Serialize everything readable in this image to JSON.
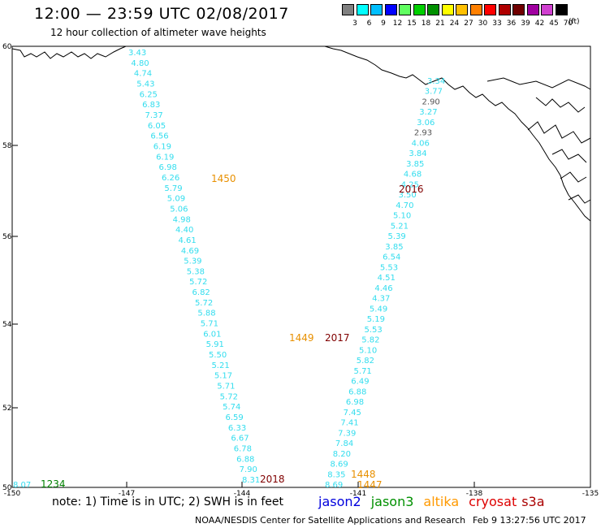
{
  "header": {
    "title": "12:00 — 23:59 UTC 02/08/2017",
    "subtitle": "12 hour collection of altimeter wave heights"
  },
  "legend": {
    "bins": [
      {
        "label": "3",
        "color": "#808080"
      },
      {
        "label": "6",
        "color": "#00ffff"
      },
      {
        "label": "9",
        "color": "#00bfff"
      },
      {
        "label": "12",
        "color": "#0000ff"
      },
      {
        "label": "15",
        "color": "#60ff60"
      },
      {
        "label": "18",
        "color": "#00d000"
      },
      {
        "label": "21",
        "color": "#009000"
      },
      {
        "label": "24",
        "color": "#ffff00"
      },
      {
        "label": "27",
        "color": "#ffc000"
      },
      {
        "label": "30",
        "color": "#ff8000"
      },
      {
        "label": "33",
        "color": "#ff0000"
      },
      {
        "label": "36",
        "color": "#b00000"
      },
      {
        "label": "39",
        "color": "#700000"
      },
      {
        "label": "42",
        "color": "#a000a0"
      },
      {
        "label": "45",
        "color": "#d040d0"
      },
      {
        "label": "70",
        "color": "#000000"
      }
    ],
    "unit": "(ft)"
  },
  "map": {
    "lat_labels": [
      "60",
      "58",
      "56",
      "54",
      "52",
      "50"
    ],
    "lon_labels": [
      "-150",
      "-147",
      "-144",
      "-141",
      "-138",
      "-135"
    ],
    "swh_color": "#33ddee",
    "swh_gray": "#555555",
    "track_a_values": [
      "3.43",
      "4.80",
      "4.74",
      "5.43",
      "6.25",
      "6.83",
      "7.37",
      "6.05",
      "6.56",
      "6.19",
      "6.19",
      "6.98",
      "6.26",
      "5.79",
      "5.09",
      "5.06",
      "4.98",
      "4.40",
      "4.61",
      "4.69",
      "5.39",
      "5.38",
      "5.72",
      "6.82",
      "5.72",
      "5.88",
      "5.71",
      "6.01",
      "5.91",
      "5.50",
      "5.21",
      "5.17",
      "5.71",
      "5.72",
      "5.74",
      "6.59",
      "6.33",
      "6.67",
      "6.78",
      "6.88",
      "7.90",
      "8.31"
    ],
    "track_b_values": [
      "3.34",
      "3.77",
      "2.90",
      "3.27",
      "3.06",
      "2.93",
      "4.06",
      "3.84",
      "3.85",
      "4.68",
      "4.25",
      "3.50",
      "4.70",
      "5.10",
      "5.21",
      "5.39",
      "3.85",
      "6.54",
      "5.53",
      "4.51",
      "4.46",
      "4.37",
      "5.49",
      "5.19",
      "5.53",
      "5.82",
      "5.10",
      "5.82",
      "5.71",
      "6.49",
      "6.88",
      "6.98",
      "7.45",
      "7.41",
      "7.39",
      "7.84",
      "8.20",
      "8.69",
      "8.35",
      "8.69"
    ],
    "time_labels": [
      {
        "text": "1450",
        "color": "#e89000"
      },
      {
        "text": "2016",
        "color": "#800000"
      },
      {
        "text": "1449",
        "color": "#e89000"
      },
      {
        "text": "2017",
        "color": "#800000"
      },
      {
        "text": "2018",
        "color": "#800000"
      },
      {
        "text": "1448",
        "color": "#e89000"
      },
      {
        "text": "1447",
        "color": "#e89000"
      },
      {
        "text": "1234",
        "color": "#008000"
      }
    ],
    "corner_value": "8.07"
  },
  "notes": {
    "text": "note: 1) Time is in UTC; 2) SWH is in feet",
    "satellites": [
      {
        "name": "jason2",
        "color": "#0000dd"
      },
      {
        "name": "jason3",
        "color": "#009000"
      },
      {
        "name": "altika",
        "color": "#ff9900"
      },
      {
        "name": "cryosat",
        "color": "#dd0000"
      },
      {
        "name": "s3a",
        "color": "#aa0000"
      }
    ]
  },
  "footer": {
    "center": "NOAA/NESDIS Center for Satellite Applications and Research",
    "timestamp": "Feb  9 13:27:56 UTC 2017"
  }
}
